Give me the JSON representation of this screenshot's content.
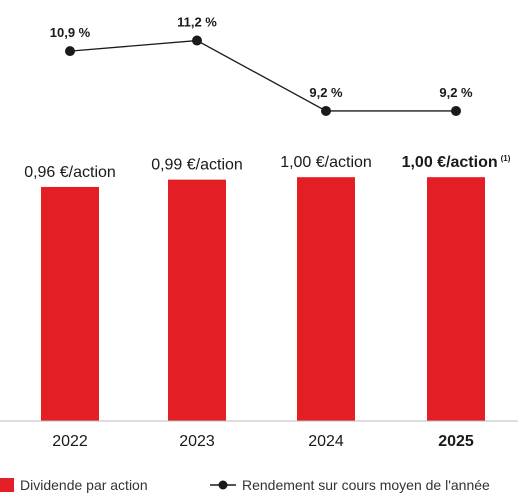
{
  "chart_data": {
    "type": "bar",
    "categories": [
      "2022",
      "2023",
      "2024",
      "2025"
    ],
    "highlight_category": "2025",
    "bar_series": {
      "name": "Dividende par action",
      "values": [
        0.96,
        0.99,
        1.0,
        1.0
      ],
      "labels": [
        "0,96 €/action",
        "0,99 €/action",
        "1,00 €/action",
        "1,00 €/action"
      ],
      "footnote": "(1)",
      "color": "#e31e24"
    },
    "line_series": {
      "name": "Rendement sur cours moyen de l'année",
      "values": [
        10.9,
        11.2,
        9.2,
        9.2
      ],
      "labels": [
        "10,9 %",
        "11,2 %",
        "9,2 %",
        "9,2 %"
      ],
      "color": "#1a1a1a"
    },
    "ylim_bar": [
      0,
      1.05
    ],
    "ylim_line": [
      9.0,
      11.5
    ],
    "grid": false,
    "legend_position": "bottom-left",
    "axis_color": "#bbbbbb"
  }
}
